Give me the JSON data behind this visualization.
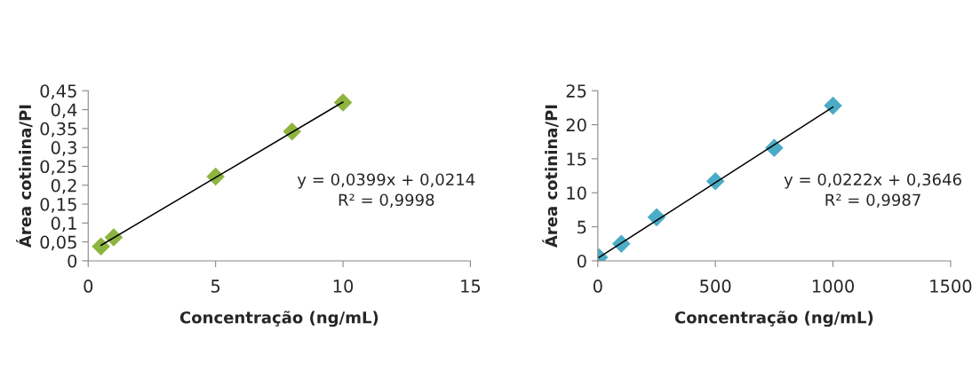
{
  "chart_data": [
    {
      "type": "scatter",
      "xlabel": "Concentração (ng/mL)",
      "ylabel": "Área cotinina/PI",
      "marker": "diamond",
      "grid": false,
      "legend": false,
      "series": [
        {
          "color": "#8db43e",
          "x": [
            0.5,
            1,
            5,
            8,
            10
          ],
          "values": [
            0.038,
            0.062,
            0.223,
            0.342,
            0.419
          ]
        },
        {
          "type": "line",
          "color": "#000000",
          "marker": "none",
          "x": [
            0.5,
            10
          ],
          "values": [
            0.041,
            0.42
          ]
        }
      ],
      "xlim": [
        0,
        15
      ],
      "xticks": [
        0,
        5,
        10,
        15
      ],
      "ylim": [
        0,
        0.45
      ],
      "yticks": [
        0,
        {
          "value": 0.05,
          "label": "0,05"
        },
        {
          "value": 0.1,
          "label": "0,1"
        },
        {
          "value": 0.15,
          "label": "0,15"
        },
        {
          "value": 0.2,
          "label": "0,2"
        },
        {
          "value": 0.25,
          "label": "0,25"
        },
        {
          "value": 0.3,
          "label": "0,3"
        },
        {
          "value": 0.35,
          "label": "0,35"
        },
        {
          "value": 0.4,
          "label": "0,4"
        },
        {
          "value": 0.45,
          "label": "0,45"
        }
      ],
      "annotations": [
        "y = 0,0399x + 0,0214",
        "R² = 0,9998"
      ]
    },
    {
      "type": "scatter",
      "xlabel": "Concentração (ng/mL)",
      "ylabel": "Área cotinina/PI",
      "marker": "diamond",
      "grid": false,
      "legend": false,
      "series": [
        {
          "color": "#4bacc6",
          "x": [
            5,
            100,
            250,
            500,
            750,
            1000
          ],
          "values": [
            0.5,
            2.5,
            6.4,
            11.7,
            16.6,
            22.8
          ]
        },
        {
          "type": "line",
          "color": "#000000",
          "marker": "none",
          "x": [
            5,
            1000
          ],
          "values": [
            0.5,
            22.6
          ]
        }
      ],
      "xlim": [
        0,
        1500
      ],
      "xticks": [
        0,
        500,
        1000,
        1500
      ],
      "ylim": [
        0,
        25
      ],
      "yticks": [
        0,
        5,
        10,
        15,
        20,
        25
      ],
      "annotations": [
        "y = 0,0222x + 0,3646",
        "R² = 0,9987"
      ]
    }
  ]
}
